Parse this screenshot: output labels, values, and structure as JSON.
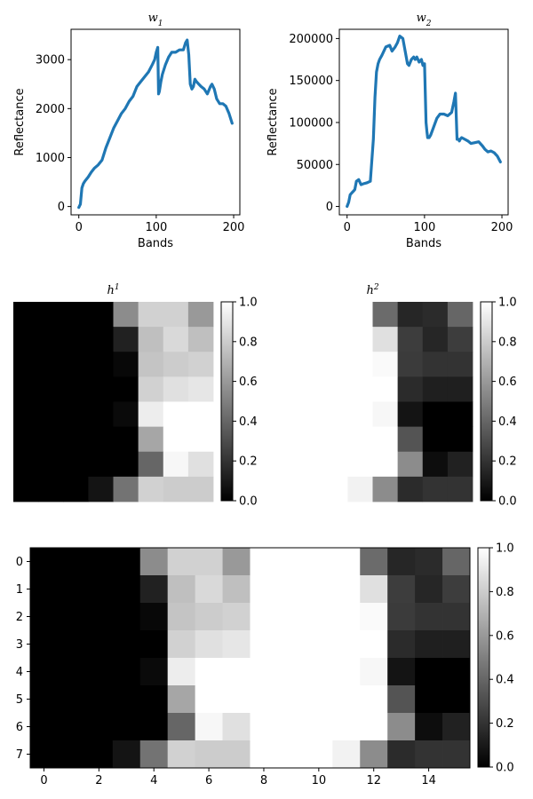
{
  "chart_data": [
    {
      "type": "line",
      "title": "w",
      "title_subscript": "1",
      "xlabel": "Bands",
      "ylabel": "Reflectance",
      "xlim": [
        -10,
        208
      ],
      "ylim": [
        -170,
        3620
      ],
      "xticks": [
        0,
        100,
        200
      ],
      "yticks": [
        0,
        1000,
        2000,
        3000
      ],
      "series": [
        {
          "color": "#1f77b4",
          "x": [
            0,
            2,
            4,
            6,
            8,
            12,
            16,
            20,
            25,
            30,
            35,
            40,
            45,
            50,
            55,
            60,
            65,
            70,
            75,
            80,
            85,
            90,
            95,
            98,
            100,
            102,
            103,
            104,
            106,
            108,
            112,
            116,
            120,
            125,
            130,
            135,
            138,
            140,
            142,
            144,
            146,
            148,
            150,
            152,
            155,
            158,
            162,
            166,
            170,
            172,
            175,
            178,
            182,
            186,
            190,
            194,
            198
          ],
          "y": [
            -20,
            50,
            380,
            470,
            520,
            600,
            700,
            780,
            850,
            950,
            1200,
            1400,
            1600,
            1750,
            1900,
            2000,
            2150,
            2250,
            2450,
            2550,
            2650,
            2750,
            2900,
            3000,
            3150,
            3250,
            2300,
            2350,
            2550,
            2700,
            2900,
            3050,
            3150,
            3150,
            3200,
            3200,
            3350,
            3400,
            3100,
            2500,
            2400,
            2450,
            2600,
            2550,
            2500,
            2450,
            2400,
            2300,
            2450,
            2500,
            2400,
            2200,
            2100,
            2100,
            2050,
            1900,
            1700
          ]
        }
      ]
    },
    {
      "type": "line",
      "title": "w",
      "title_subscript": "2",
      "xlabel": "Bands",
      "ylabel": "Reflectance",
      "xlim": [
        -10,
        208
      ],
      "ylim": [
        -10000,
        211000
      ],
      "xticks": [
        0,
        100,
        200
      ],
      "yticks": [
        0,
        50000,
        100000,
        150000,
        200000
      ],
      "series": [
        {
          "color": "#1f77b4",
          "x": [
            0,
            2,
            4,
            6,
            8,
            10,
            12,
            15,
            18,
            21,
            25,
            30,
            34,
            36,
            38,
            40,
            42,
            45,
            50,
            55,
            58,
            62,
            65,
            68,
            72,
            75,
            78,
            80,
            83,
            86,
            88,
            90,
            93,
            96,
            98,
            100,
            102,
            103,
            104,
            106,
            108,
            112,
            116,
            120,
            125,
            130,
            135,
            138,
            140,
            142,
            144,
            145,
            146,
            148,
            152,
            156,
            160,
            165,
            170,
            175,
            178,
            182,
            186,
            190,
            194,
            198
          ],
          "y": [
            0,
            5000,
            14000,
            16000,
            18000,
            20000,
            30000,
            32000,
            26000,
            27000,
            28000,
            30000,
            80000,
            130000,
            160000,
            170000,
            175000,
            180000,
            190000,
            192000,
            185000,
            190000,
            195000,
            203000,
            200000,
            185000,
            170000,
            168000,
            175000,
            178000,
            175000,
            178000,
            172000,
            175000,
            168000,
            170000,
            100000,
            90000,
            82000,
            82000,
            85000,
            95000,
            105000,
            110000,
            110000,
            108000,
            112000,
            125000,
            135000,
            80000,
            80000,
            78000,
            80000,
            82000,
            80000,
            78000,
            75000,
            76000,
            77000,
            72000,
            68000,
            65000,
            66000,
            64000,
            60000,
            53000
          ]
        }
      ]
    },
    {
      "type": "heatmap",
      "title": "h",
      "title_superscript": "1",
      "rows": 8,
      "cols": 8,
      "colorbar_ticks": [
        "0.0",
        "0.2",
        "0.4",
        "0.6",
        "0.8",
        "1.0"
      ],
      "colormap": "gray",
      "values": [
        [
          0,
          0,
          0,
          0,
          0.55,
          0.82,
          0.82,
          0.6
        ],
        [
          0,
          0,
          0,
          0,
          0.13,
          0.75,
          0.85,
          0.75
        ],
        [
          0,
          0,
          0,
          0,
          0.03,
          0.77,
          0.8,
          0.82
        ],
        [
          0,
          0,
          0,
          0,
          0,
          0.82,
          0.88,
          0.9
        ],
        [
          0,
          0,
          0,
          0,
          0.04,
          0.93,
          1,
          1
        ],
        [
          0,
          0,
          0,
          0,
          0,
          0.65,
          1,
          1
        ],
        [
          0,
          0,
          0,
          0,
          0,
          0.4,
          0.97,
          0.88
        ],
        [
          0,
          0,
          0,
          0.08,
          0.45,
          0.82,
          0.8,
          0.8
        ]
      ]
    },
    {
      "type": "heatmap",
      "title": "h",
      "title_superscript": "2",
      "rows": 8,
      "cols": 8,
      "colorbar_ticks": [
        "0.0",
        "0.2",
        "0.4",
        "0.6",
        "0.8",
        "1.0"
      ],
      "colormap": "gray",
      "values": [
        [
          1,
          1,
          1,
          1,
          0.42,
          0.15,
          0.17,
          0.4
        ],
        [
          1,
          1,
          1,
          1,
          0.88,
          0.24,
          0.15,
          0.24
        ],
        [
          1,
          1,
          1,
          1,
          0.98,
          0.23,
          0.2,
          0.2
        ],
        [
          1,
          1,
          1,
          1,
          1,
          0.17,
          0.12,
          0.12
        ],
        [
          1,
          1,
          1,
          1,
          0.97,
          0.08,
          0,
          0
        ],
        [
          1,
          1,
          1,
          1,
          1,
          0.33,
          0,
          0
        ],
        [
          1,
          1,
          1,
          1,
          1,
          0.55,
          0.05,
          0.13
        ],
        [
          1,
          1,
          1,
          0.95,
          0.55,
          0.17,
          0.2,
          0.2
        ]
      ]
    },
    {
      "type": "heatmap",
      "rows": 8,
      "cols": 16,
      "xticks": [
        "0",
        "2",
        "4",
        "6",
        "8",
        "10",
        "12",
        "14"
      ],
      "yticks": [
        "0",
        "1",
        "2",
        "3",
        "4",
        "5",
        "6",
        "7"
      ],
      "colorbar_ticks": [
        "0.0",
        "0.2",
        "0.4",
        "0.6",
        "0.8",
        "1.0"
      ],
      "colormap": "gray",
      "values": [
        [
          0,
          0,
          0,
          0,
          0.55,
          0.82,
          0.82,
          0.6,
          1,
          1,
          1,
          1,
          0.42,
          0.15,
          0.17,
          0.4
        ],
        [
          0,
          0,
          0,
          0,
          0.13,
          0.75,
          0.85,
          0.75,
          1,
          1,
          1,
          1,
          0.88,
          0.24,
          0.15,
          0.24
        ],
        [
          0,
          0,
          0,
          0,
          0.03,
          0.77,
          0.8,
          0.82,
          1,
          1,
          1,
          1,
          0.98,
          0.23,
          0.2,
          0.2
        ],
        [
          0,
          0,
          0,
          0,
          0,
          0.82,
          0.88,
          0.9,
          1,
          1,
          1,
          1,
          1,
          0.17,
          0.12,
          0.12
        ],
        [
          0,
          0,
          0,
          0,
          0.04,
          0.93,
          1,
          1,
          1,
          1,
          1,
          1,
          0.97,
          0.08,
          0,
          0
        ],
        [
          0,
          0,
          0,
          0,
          0,
          0.65,
          1,
          1,
          1,
          1,
          1,
          1,
          1,
          0.33,
          0,
          0
        ],
        [
          0,
          0,
          0,
          0,
          0,
          0.4,
          0.97,
          0.88,
          1,
          1,
          1,
          1,
          1,
          0.55,
          0.05,
          0.13
        ],
        [
          0,
          0,
          0,
          0.08,
          0.45,
          0.82,
          0.8,
          0.8,
          1,
          1,
          1,
          0.95,
          0.55,
          0.17,
          0.2,
          0.2
        ]
      ]
    }
  ]
}
